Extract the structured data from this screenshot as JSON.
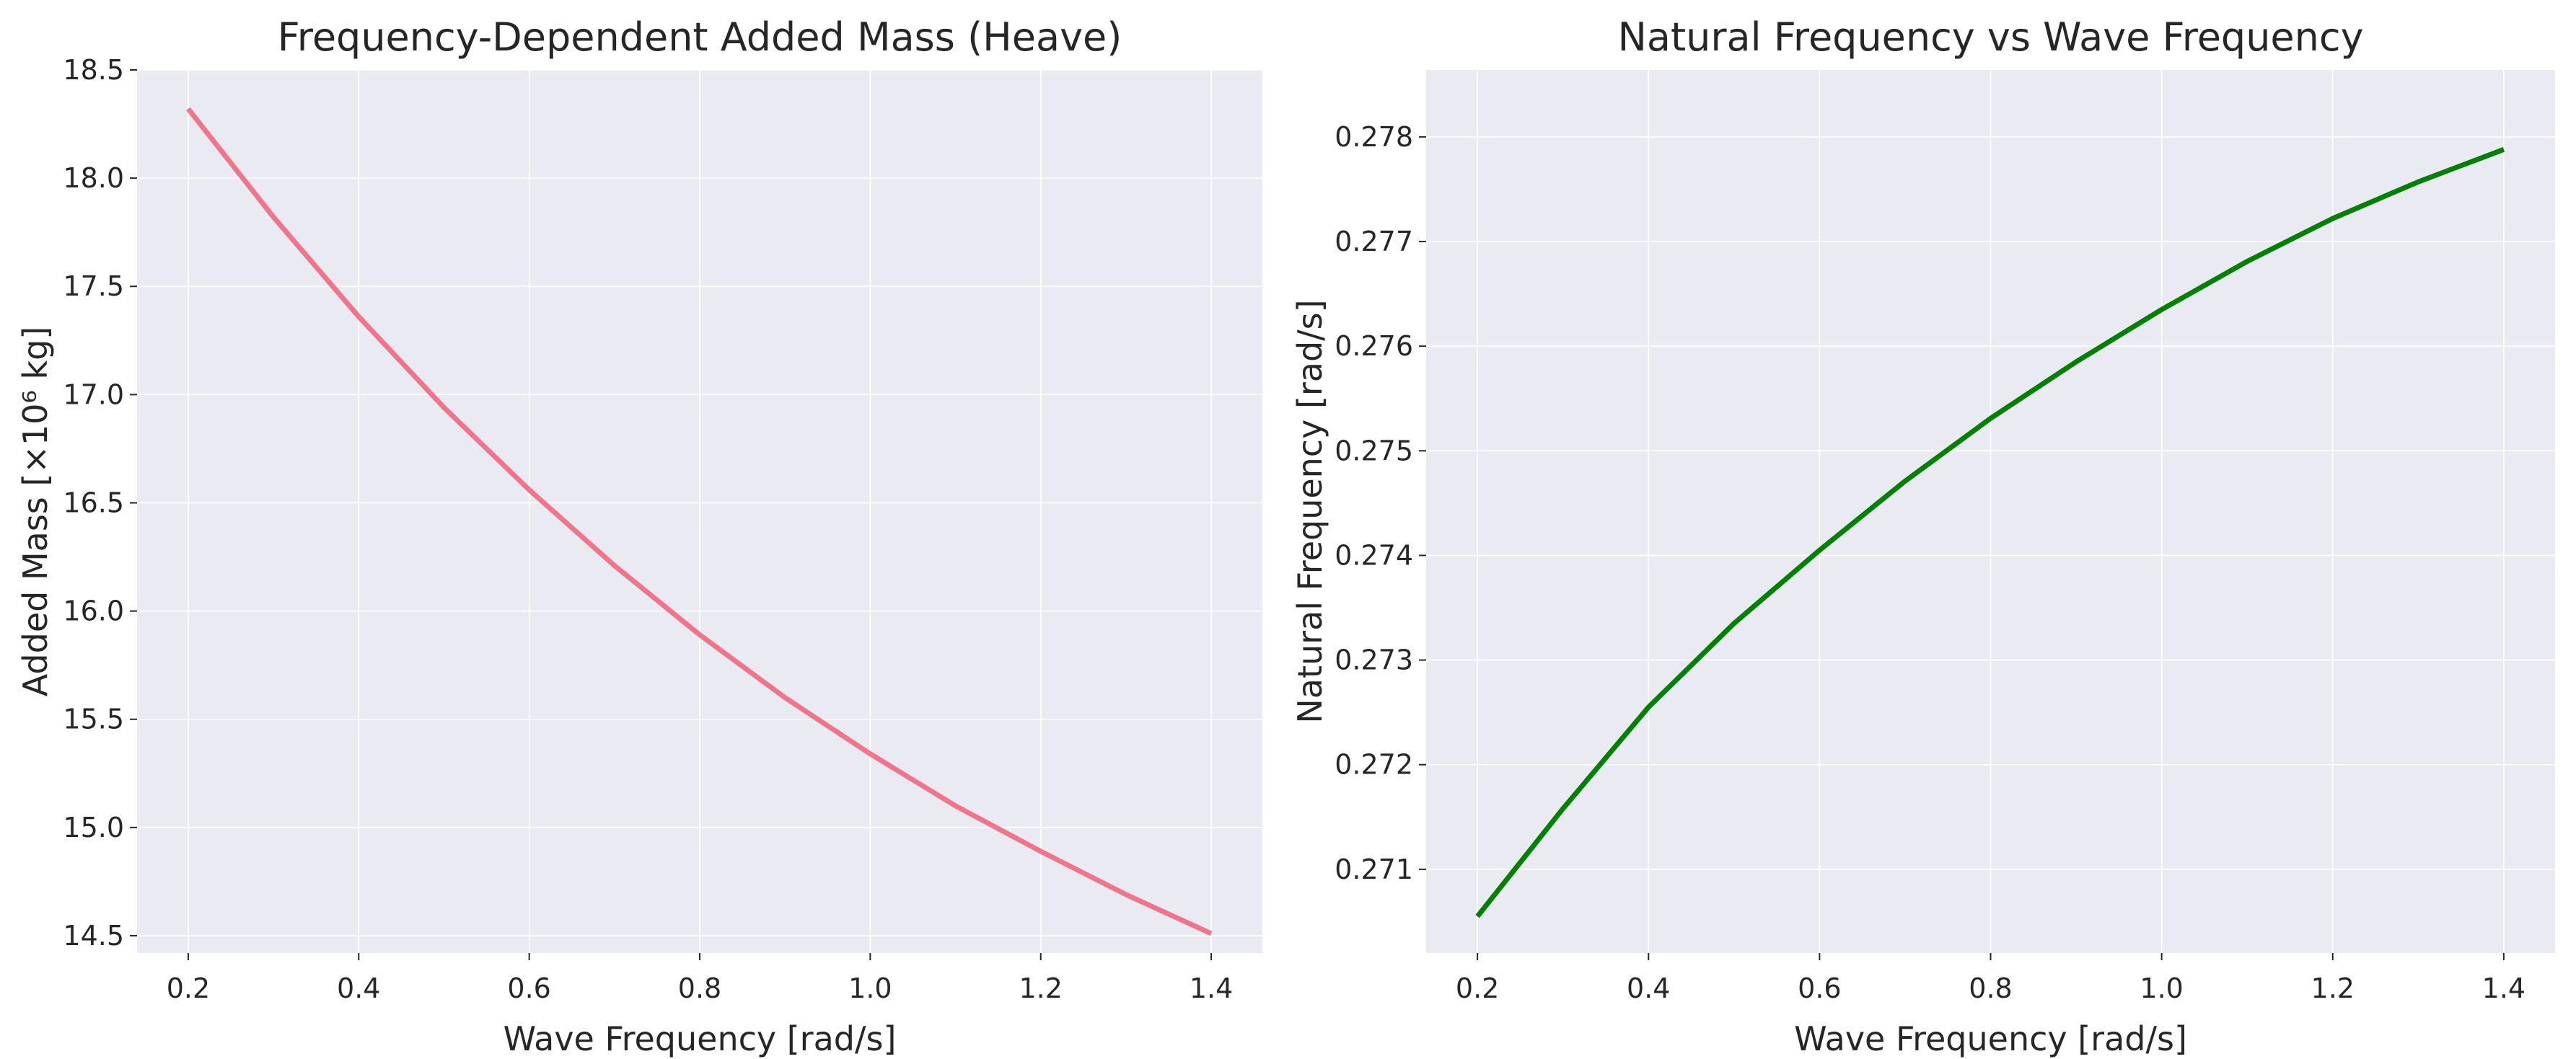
{
  "chart_data": [
    {
      "type": "line",
      "title": "Frequency-Dependent Added Mass (Heave)",
      "xlabel": "Wave Frequency [rad/s]",
      "ylabel": "Added Mass [×10⁶ kg]",
      "xlim": [
        0.14,
        1.46
      ],
      "ylim": [
        14.42,
        18.5
      ],
      "xticks": [
        0.2,
        0.4,
        0.6,
        0.8,
        1.0,
        1.2,
        1.4
      ],
      "xtick_labels": [
        "0.2",
        "0.4",
        "0.6",
        "0.8",
        "1.0",
        "1.2",
        "1.4"
      ],
      "yticks": [
        14.5,
        15.0,
        15.5,
        16.0,
        16.5,
        17.0,
        17.5,
        18.0,
        18.5
      ],
      "ytick_labels": [
        "14.5",
        "15.0",
        "15.5",
        "16.0",
        "16.5",
        "17.0",
        "17.5",
        "18.0",
        "18.5"
      ],
      "grid": true,
      "series": [
        {
          "color": "#f0758a",
          "x": [
            0.2,
            0.3,
            0.4,
            0.5,
            0.6,
            0.7,
            0.8,
            0.9,
            1.0,
            1.1,
            1.2,
            1.3,
            1.4
          ],
          "y": [
            18.32,
            17.82,
            17.36,
            16.94,
            16.56,
            16.21,
            15.89,
            15.6,
            15.34,
            15.1,
            14.89,
            14.69,
            14.51
          ]
        }
      ]
    },
    {
      "type": "line",
      "title": "Natural Frequency vs Wave Frequency",
      "xlabel": "Wave Frequency [rad/s]",
      "ylabel": "Natural Frequency [rad/s]",
      "xlim": [
        0.14,
        1.46
      ],
      "ylim": [
        0.2702,
        0.27864
      ],
      "xticks": [
        0.2,
        0.4,
        0.6,
        0.8,
        1.0,
        1.2,
        1.4
      ],
      "xtick_labels": [
        "0.2",
        "0.4",
        "0.6",
        "0.8",
        "1.0",
        "1.2",
        "1.4"
      ],
      "yticks": [
        0.271,
        0.272,
        0.273,
        0.274,
        0.275,
        0.276,
        0.277,
        0.278
      ],
      "ytick_labels": [
        "0.271",
        "0.272",
        "0.273",
        "0.274",
        "0.275",
        "0.276",
        "0.277",
        "0.278"
      ],
      "grid": true,
      "series": [
        {
          "color": "#008000",
          "x": [
            0.2,
            0.3,
            0.4,
            0.5,
            0.6,
            0.7,
            0.8,
            0.9,
            1.0,
            1.1,
            1.2,
            1.3,
            1.4
          ],
          "y": [
            0.27055,
            0.27158,
            0.27255,
            0.27335,
            0.27405,
            0.27471,
            0.27531,
            0.27585,
            0.27635,
            0.27681,
            0.27722,
            0.27757,
            0.27788
          ]
        }
      ]
    }
  ]
}
